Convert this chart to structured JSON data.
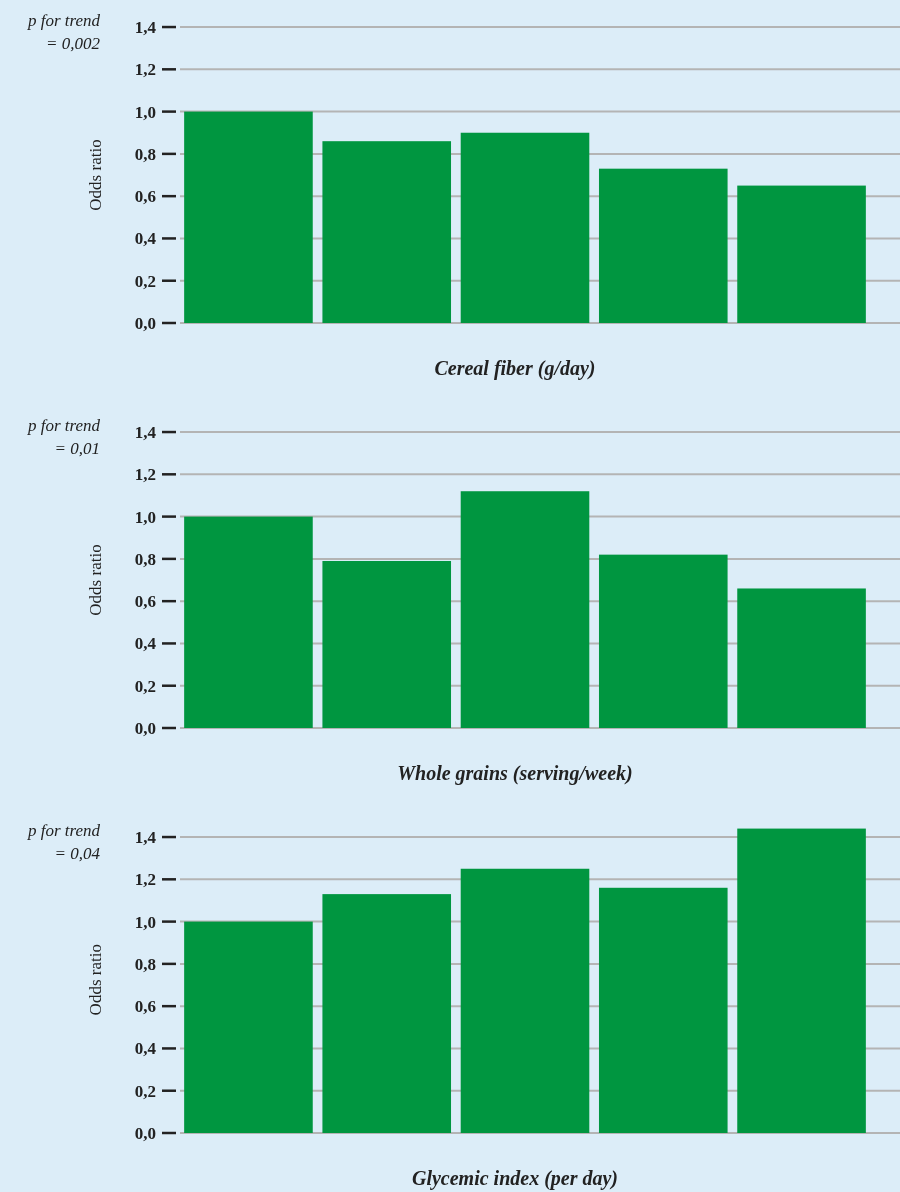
{
  "chart_data": [
    {
      "type": "bar",
      "categories": [
        null,
        null,
        null,
        null,
        null
      ],
      "values": [
        1.0,
        0.86,
        0.9,
        0.73,
        0.65
      ],
      "color": "#009640",
      "xlabel": "Cereal fiber (g/day)",
      "ylabel": "Odds ratio",
      "annotations": [
        "p for trend\n= 0,002"
      ],
      "ylim": [
        0,
        1.4
      ],
      "yticks": [
        {
          "value": 0,
          "label": "0,0"
        },
        {
          "value": 0.2,
          "label": "0,2"
        },
        {
          "value": 0.4,
          "label": "0,4"
        },
        {
          "value": 0.6,
          "label": "0,6"
        },
        {
          "value": 0.8,
          "label": "0,8"
        },
        {
          "value": 1.0,
          "label": "1,0"
        },
        {
          "value": 1.2,
          "label": "1,2"
        },
        {
          "value": 1.4,
          "label": "1,4"
        }
      ],
      "grid": "y"
    },
    {
      "type": "bar",
      "categories": [
        null,
        null,
        null,
        null,
        null
      ],
      "values": [
        1.0,
        0.79,
        1.12,
        0.82,
        0.66
      ],
      "color": "#009640",
      "xlabel": "Whole grains (serving/week)",
      "ylabel": "Odds ratio",
      "annotations": [
        "p for trend\n= 0,01"
      ],
      "ylim": [
        0,
        1.4
      ],
      "yticks": [
        {
          "value": 0,
          "label": "0,0"
        },
        {
          "value": 0.2,
          "label": "0,2"
        },
        {
          "value": 0.4,
          "label": "0,4"
        },
        {
          "value": 0.6,
          "label": "0,6"
        },
        {
          "value": 0.8,
          "label": "0,8"
        },
        {
          "value": 1.0,
          "label": "1,0"
        },
        {
          "value": 1.2,
          "label": "1,2"
        },
        {
          "value": 1.4,
          "label": "1,4"
        }
      ],
      "grid": "y"
    },
    {
      "type": "bar",
      "categories": [
        null,
        null,
        null,
        null,
        null
      ],
      "values": [
        1.0,
        1.13,
        1.25,
        1.16,
        1.44
      ],
      "color": "#009640",
      "xlabel": "Glycemic index (per day)",
      "ylabel": "Odds ratio",
      "annotations": [
        "p for trend\n= 0,04"
      ],
      "ylim": [
        0,
        1.45
      ],
      "yticks": [
        {
          "value": 0,
          "label": "0,0"
        },
        {
          "value": 0.2,
          "label": "0,2"
        },
        {
          "value": 0.4,
          "label": "0,4"
        },
        {
          "value": 0.6,
          "label": "0,6"
        },
        {
          "value": 0.8,
          "label": "0,8"
        },
        {
          "value": 1.0,
          "label": "1,0"
        },
        {
          "value": 1.2,
          "label": "1,2"
        },
        {
          "value": 1.4,
          "label": "1,4"
        }
      ],
      "grid": "y"
    }
  ]
}
